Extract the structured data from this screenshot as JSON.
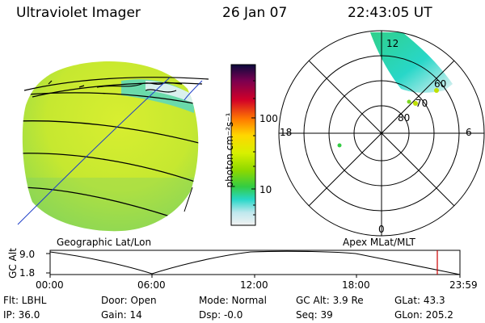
{
  "header": {
    "instrument": "Ultraviolet Imager",
    "date": "26 Jan 07",
    "time": "22:43:05 UT"
  },
  "colorbar": {
    "unit_label": "photon cm⁻²s⁻¹",
    "ticks": [
      "100",
      "10"
    ],
    "colors": [
      "#0a0a3c",
      "#7a0050",
      "#d20028",
      "#ff7a00",
      "#ffd700",
      "#d8f000",
      "#8cd800",
      "#33cc44",
      "#28d7c8",
      "#bfe8ee",
      "#f2f2f2"
    ]
  },
  "geo_panel": {
    "label": "Geographic Lat/Lon"
  },
  "polar_panel": {
    "label": "Apex MLat/MLT",
    "mlt_labels": {
      "top": "12",
      "left": "18",
      "right": "6",
      "bottom": "0"
    },
    "lat_labels": [
      "60",
      "70",
      "80"
    ]
  },
  "altitude_plot": {
    "ylabel": "GC Alt",
    "yticks": [
      "9.0",
      "1.8"
    ],
    "xticks": [
      "00:00",
      "06:00",
      "12:00",
      "18:00",
      "23:59"
    ],
    "marker_color": "#cc0000"
  },
  "status": {
    "row1": {
      "flt": "Flt: LBHL",
      "door": "Door: Open",
      "mode": "Mode: Normal",
      "gcalt": "GC Alt: 3.9 Re",
      "glat": "GLat: 43.3"
    },
    "row2": {
      "ip": "IP: 36.0",
      "gain": "Gain: 14",
      "dsp": "Dsp: -0.0",
      "seq": "Seq: 39",
      "glon": "GLon: 205.2"
    }
  }
}
